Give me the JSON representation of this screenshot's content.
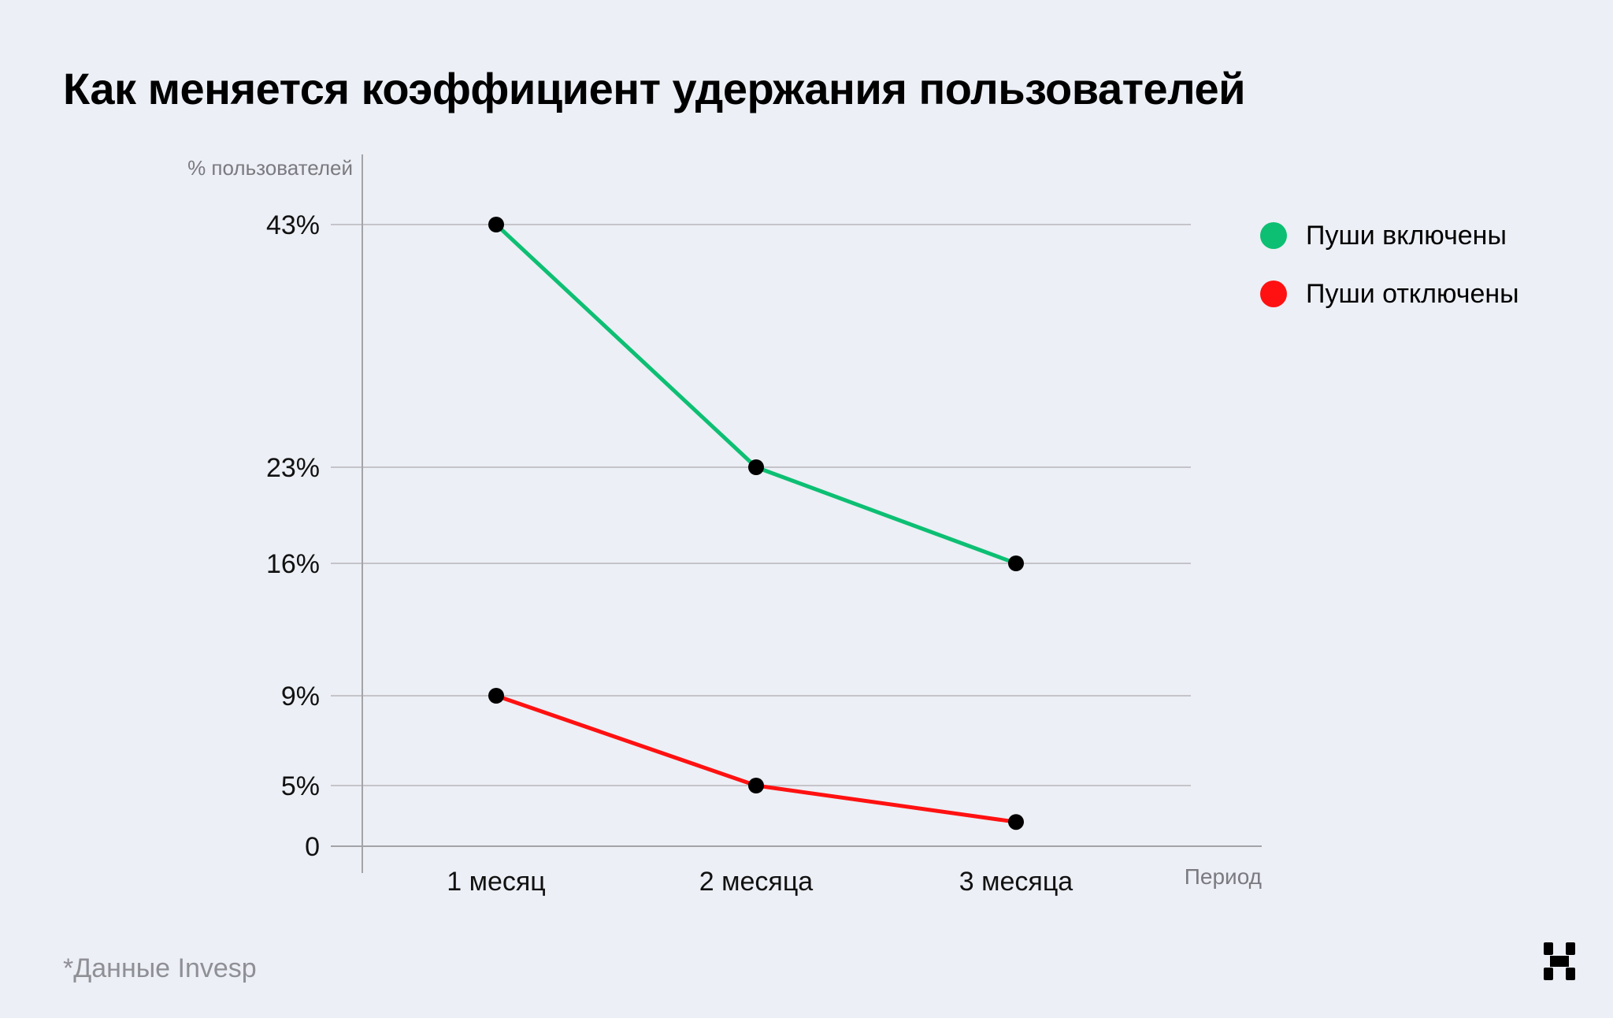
{
  "title": "Как меняется коэффициент удержания пользователей",
  "source_note": "*Данные Invesp",
  "legend": [
    {
      "label": "Пуши включены",
      "color": "#0dbf73"
    },
    {
      "label": "Пуши отключены",
      "color": "#ff1111"
    }
  ],
  "logo": {
    "icon": "x-logo-icon"
  },
  "chart_data": {
    "type": "line",
    "ylabel": "% пользователей",
    "xlabel": "Период",
    "categories": [
      "1 месяц",
      "2 месяца",
      "3 месяца"
    ],
    "y_ticks": [
      {
        "value": 43,
        "label": "43%"
      },
      {
        "value": 23,
        "label": "23%"
      },
      {
        "value": 16,
        "label": "16%"
      },
      {
        "value": 9,
        "label": "9%"
      },
      {
        "value": 5,
        "label": "5%"
      },
      {
        "value": 0,
        "label": "0"
      }
    ],
    "grid": true,
    "legend_position": "top-right",
    "series": [
      {
        "name": "Пуши включены",
        "color": "#0dbf73",
        "values": [
          43,
          23,
          16
        ]
      },
      {
        "name": "Пуши отключены",
        "color": "#ff1111",
        "values": [
          9,
          5,
          2
        ]
      }
    ]
  }
}
